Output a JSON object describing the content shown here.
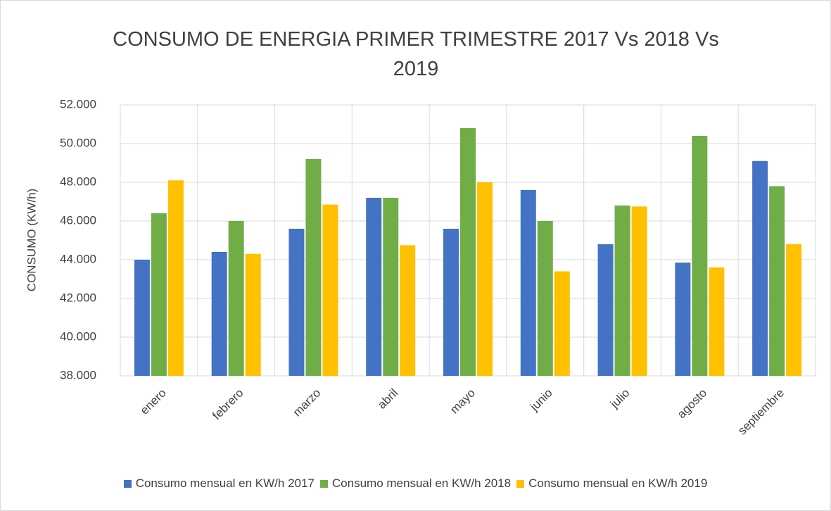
{
  "chart_data": {
    "type": "bar",
    "title": "CONSUMO DE ENERGIA PRIMER TRIMESTRE 2017 Vs 2018 Vs 2019",
    "y_label": "CONSUMO (KW/h)",
    "categories": [
      "enero",
      "febrero",
      "marzo",
      "abril",
      "mayo",
      "junio",
      "julio",
      "agosto",
      "septiembre"
    ],
    "series": [
      {
        "name": "Consumo mensual en KW/h 2017",
        "color": "#4472c4",
        "values": [
          44000,
          44400,
          45600,
          47200,
          45600,
          47600,
          44800,
          43850,
          49100
        ]
      },
      {
        "name": "Consumo mensual en KW/h 2018",
        "color": "#70ad47",
        "values": [
          46400,
          46000,
          49200,
          47200,
          50800,
          46000,
          46800,
          50400,
          47800
        ]
      },
      {
        "name": "Consumo mensual en KW/h 2019",
        "color": "#ffc000",
        "values": [
          48100,
          44300,
          46850,
          44750,
          48000,
          43400,
          46750,
          43600,
          44800
        ]
      }
    ],
    "ylim": [
      38000,
      52000
    ],
    "yticks": [
      {
        "value": 38000,
        "label": "38.000"
      },
      {
        "value": 40000,
        "label": "40.000"
      },
      {
        "value": 42000,
        "label": "42.000"
      },
      {
        "value": 44000,
        "label": "44.000"
      },
      {
        "value": 46000,
        "label": "46.000"
      },
      {
        "value": 48000,
        "label": "48.000"
      },
      {
        "value": 50000,
        "label": "50.000"
      },
      {
        "value": 52000,
        "label": "52.000"
      }
    ],
    "grid": true
  }
}
